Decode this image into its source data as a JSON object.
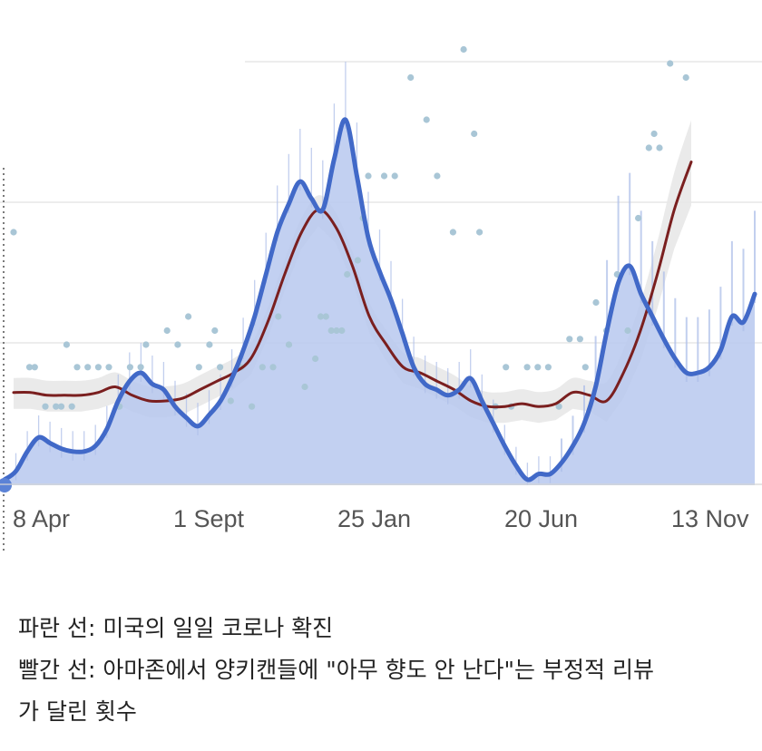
{
  "chart_data": {
    "type": "line",
    "title": "",
    "xlabel": "",
    "ylabel": "",
    "x_tick_labels": [
      "8 Apr",
      "1 Sept",
      "25 Jan",
      "20 Jun",
      "13 Nov"
    ],
    "colors": {
      "daily_cases": "#4169c8",
      "daily_cases_fill": "#b7c8ef",
      "negative_reviews": "#7a1f1f",
      "review_points": "#a9c6d6",
      "confidence_band": "#e6e6e6"
    },
    "series": [
      {
        "values": [
          2,
          5,
          12,
          17,
          15,
          13,
          12,
          12,
          14,
          20,
          30,
          37,
          40,
          36,
          34,
          28,
          24,
          21,
          25,
          30,
          38,
          48,
          60,
          75,
          90,
          100,
          108,
          102,
          98,
          116,
          130,
          110,
          88,
          76,
          66,
          54,
          42,
          36,
          34,
          32,
          34,
          38,
          30,
          22,
          14,
          7,
          2,
          4,
          4,
          8,
          14,
          22,
          35,
          55,
          72,
          78,
          68,
          60,
          52,
          45,
          40,
          40,
          42,
          48,
          60,
          58,
          68
        ]
      },
      {
        "values": [
          33,
          33,
          32,
          32,
          32,
          33,
          35,
          32,
          30,
          30,
          31,
          34,
          37,
          40,
          45,
          58,
          75,
          90,
          98,
          92,
          78,
          60,
          50,
          42,
          40,
          37,
          34,
          30,
          28,
          28,
          29,
          28,
          29,
          33,
          32,
          30,
          40,
          55,
          75,
          98,
          115
        ]
      }
    ],
    "review_points": [
      [
        0,
        90
      ],
      [
        3,
        42
      ],
      [
        4,
        42
      ],
      [
        6,
        28
      ],
      [
        8,
        28
      ],
      [
        9,
        28
      ],
      [
        10,
        50
      ],
      [
        11,
        28
      ],
      [
        12,
        42
      ],
      [
        14,
        42
      ],
      [
        16,
        42
      ],
      [
        18,
        42
      ],
      [
        20,
        28
      ],
      [
        22,
        42
      ],
      [
        24,
        42
      ],
      [
        25,
        50
      ],
      [
        29,
        55
      ],
      [
        31,
        50
      ],
      [
        33,
        60
      ],
      [
        35,
        42
      ],
      [
        37,
        50
      ],
      [
        38,
        55
      ],
      [
        39,
        42
      ],
      [
        41,
        30
      ],
      [
        43,
        42
      ],
      [
        45,
        28
      ],
      [
        47,
        42
      ],
      [
        49,
        42
      ],
      [
        50,
        60
      ],
      [
        52,
        50
      ],
      [
        55,
        35
      ],
      [
        57,
        45
      ],
      [
        58,
        60
      ],
      [
        59,
        60
      ],
      [
        60,
        55
      ],
      [
        61,
        55
      ],
      [
        62,
        55
      ],
      [
        63,
        75
      ],
      [
        65,
        80
      ],
      [
        66,
        95
      ],
      [
        67,
        110
      ],
      [
        70,
        110
      ],
      [
        72,
        110
      ],
      [
        75,
        145
      ],
      [
        78,
        130
      ],
      [
        80,
        110
      ],
      [
        83,
        90
      ],
      [
        85,
        155
      ],
      [
        87,
        125
      ],
      [
        88,
        90
      ],
      [
        91,
        28
      ],
      [
        93,
        42
      ],
      [
        94,
        28
      ],
      [
        97,
        42
      ],
      [
        99,
        42
      ],
      [
        101,
        42
      ],
      [
        103,
        28
      ],
      [
        105,
        52
      ],
      [
        107,
        52
      ],
      [
        108,
        42
      ],
      [
        110,
        65
      ],
      [
        112,
        55
      ],
      [
        114,
        75
      ],
      [
        116,
        55
      ],
      [
        118,
        95
      ],
      [
        120,
        120
      ],
      [
        121,
        125
      ],
      [
        122,
        120
      ],
      [
        124,
        150
      ],
      [
        126,
        175
      ],
      [
        127,
        145
      ]
    ]
  },
  "caption": {
    "line1": "파란 선: 미국의 일일 코로나 확진",
    "line2": "빨간 선: 아마존에서 양키캔들에 \"아무 향도 안 난다\"는 부정적 리뷰",
    "line3": "가 달린 횟수"
  }
}
